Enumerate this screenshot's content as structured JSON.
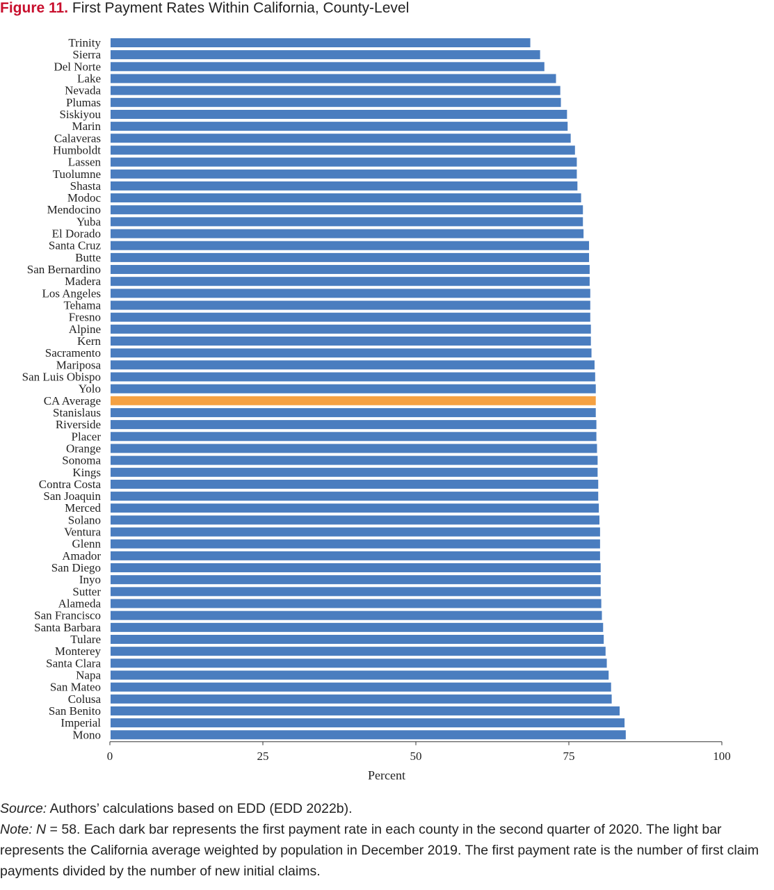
{
  "figure": {
    "number": "Figure 11.",
    "title": "First Payment Rates Within California, County-Level"
  },
  "chart_data": {
    "type": "bar",
    "orientation": "horizontal",
    "xlabel": "Percent",
    "xlim": [
      0,
      100
    ],
    "xticks": [
      0,
      25,
      50,
      75,
      100
    ],
    "colors": {
      "county": "#4a7dbf",
      "average": "#f5a142"
    },
    "highlight": "CA Average",
    "categories": [
      "Trinity",
      "Sierra",
      "Del Norte",
      "Lake",
      "Nevada",
      "Plumas",
      "Siskiyou",
      "Marin",
      "Calaveras",
      "Humboldt",
      "Lassen",
      "Tuolumne",
      "Shasta",
      "Modoc",
      "Mendocino",
      "Yuba",
      "El Dorado",
      "Santa Cruz",
      "Butte",
      "San Bernardino",
      "Madera",
      "Los  Angeles",
      "Tehama",
      "Fresno",
      "Alpine",
      "Kern",
      "Sacramento",
      "Mariposa",
      "San Luis Obispo",
      "Yolo",
      "CA Average",
      "Stanislaus",
      "Riverside",
      "Placer",
      "Orange",
      "Sonoma",
      "Kings",
      "Contra Costa",
      "San Joaquin",
      "Merced",
      "Solano",
      "Ventura",
      "Glenn",
      "Amador",
      "San Diego",
      "Inyo",
      "Sutter",
      "Alameda",
      "San Francisco",
      "Santa Barbara",
      "Tulare",
      "Monterey",
      "Santa Clara",
      "Napa",
      "San Mateo",
      "Colusa",
      "San Benito",
      "Imperial",
      "Mono"
    ],
    "values": [
      68.7,
      70.3,
      71.0,
      72.9,
      73.6,
      73.7,
      74.7,
      74.8,
      75.3,
      76.0,
      76.3,
      76.3,
      76.4,
      77.0,
      77.3,
      77.3,
      77.4,
      78.3,
      78.3,
      78.4,
      78.4,
      78.5,
      78.5,
      78.5,
      78.6,
      78.6,
      78.7,
      79.2,
      79.3,
      79.4,
      79.4,
      79.4,
      79.5,
      79.5,
      79.6,
      79.7,
      79.7,
      79.8,
      79.8,
      79.9,
      80.0,
      80.1,
      80.1,
      80.1,
      80.2,
      80.2,
      80.2,
      80.3,
      80.4,
      80.6,
      80.7,
      81.0,
      81.2,
      81.5,
      81.9,
      82.0,
      83.3,
      84.1,
      84.3
    ]
  },
  "notes": {
    "source_label": "Source:",
    "source_text": " Authors’ calculations based on EDD (EDD 2022b).",
    "note_label": "Note:",
    "note_n": "N",
    "note_text": " = 58. Each dark bar represents the first payment rate in each county in the second quarter of 2020. The light bar represents the California average weighted by population in December 2019. The first payment rate is the number of first claim payments divided by the number of new initial claims."
  }
}
